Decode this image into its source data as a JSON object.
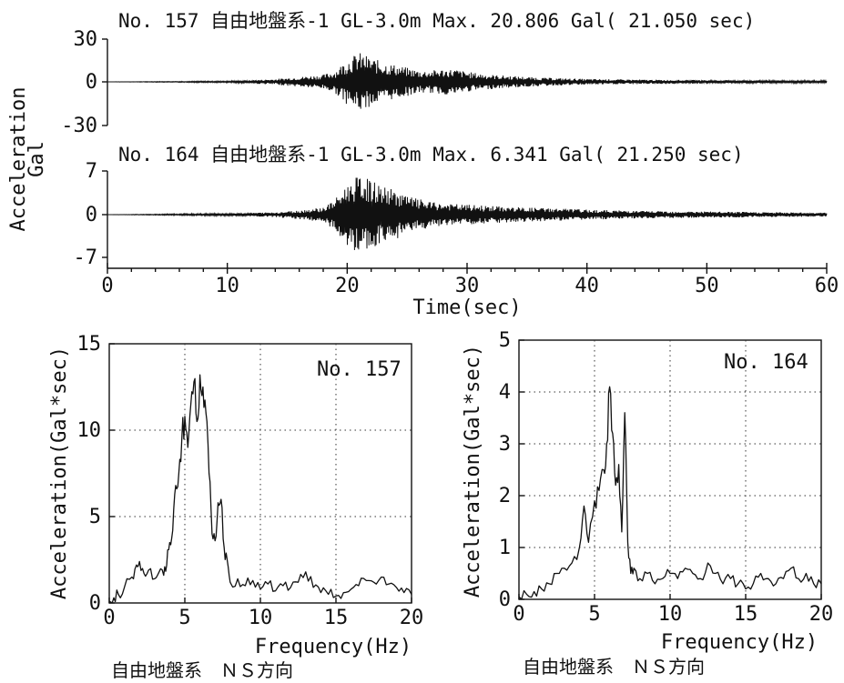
{
  "chart_data": [
    {
      "type": "line",
      "title": "No. 157  自由地盤系-1   GL-3.0m    Max.  20.806 Gal( 21.050 sec)",
      "ylabel": "Acceleration\nGal",
      "xlabel": "Time(sec)",
      "ylim": [
        -30,
        30
      ],
      "xlim": [
        0,
        60
      ],
      "y_ticks": [
        "30",
        "0",
        "-30"
      ],
      "x_ticks": [
        "0",
        "10",
        "20",
        "30",
        "40",
        "50",
        "60"
      ],
      "max_value": 20.806,
      "max_time": 21.05,
      "series": [
        {
          "values": [
            [
              0,
              0
            ],
            [
              5,
              0.3
            ],
            [
              10,
              0.6
            ],
            [
              12,
              1.2
            ],
            [
              14,
              2
            ],
            [
              16,
              3.5
            ],
            [
              18,
              5
            ],
            [
              19,
              8
            ],
            [
              20,
              16
            ],
            [
              21,
              20.8
            ],
            [
              22,
              17
            ],
            [
              23,
              14
            ],
            [
              24,
              12
            ],
            [
              25,
              10
            ],
            [
              26,
              8
            ],
            [
              27,
              8
            ],
            [
              28,
              9
            ],
            [
              29,
              9
            ],
            [
              30,
              7
            ],
            [
              32,
              5
            ],
            [
              34,
              4
            ],
            [
              36,
              3
            ],
            [
              38,
              2.5
            ],
            [
              40,
              2
            ],
            [
              45,
              1.5
            ],
            [
              50,
              1.2
            ],
            [
              55,
              1
            ],
            [
              60,
              0.8
            ]
          ]
        }
      ]
    },
    {
      "type": "line",
      "title": "No. 164  自由地盤系-1   GL-3.0m    Max.  6.341 Gal( 21.250 sec)",
      "ylabel": "Acceleration\nGal",
      "xlabel": "Time(sec)",
      "ylim": [
        -7,
        7
      ],
      "xlim": [
        0,
        60
      ],
      "y_ticks": [
        "7",
        "0",
        "-7"
      ],
      "x_ticks": [
        "0",
        "10",
        "20",
        "30",
        "40",
        "50",
        "60"
      ],
      "max_value": 6.341,
      "max_time": 21.25,
      "series": [
        {
          "values": [
            [
              0,
              0
            ],
            [
              5,
              0.1
            ],
            [
              10,
              0.2
            ],
            [
              14,
              0.4
            ],
            [
              16,
              0.7
            ],
            [
              18,
              1.2
            ],
            [
              19,
              2.5
            ],
            [
              20,
              5
            ],
            [
              21,
              6.3
            ],
            [
              22,
              5.5
            ],
            [
              23,
              4.5
            ],
            [
              24,
              4
            ],
            [
              25,
              3
            ],
            [
              26,
              2.5
            ],
            [
              27,
              2
            ],
            [
              28,
              1.8
            ],
            [
              30,
              1.6
            ],
            [
              32,
              1.4
            ],
            [
              34,
              1.2
            ],
            [
              36,
              1.1
            ],
            [
              38,
              1
            ],
            [
              40,
              0.8
            ],
            [
              45,
              0.6
            ],
            [
              50,
              0.5
            ],
            [
              55,
              0.4
            ],
            [
              60,
              0.3
            ]
          ]
        }
      ]
    },
    {
      "type": "line",
      "title": "",
      "label": "No. 157",
      "xlabel": "Frequency(Hz)",
      "ylabel": "Acceleration(Gal*sec)",
      "xlim": [
        0,
        20
      ],
      "ylim": [
        0,
        15
      ],
      "x_ticks": [
        "0",
        "5",
        "10",
        "15",
        "20"
      ],
      "y_ticks": [
        "0",
        "5",
        "10",
        "15"
      ],
      "grid": true,
      "caption": "自由地盤系　ＮＳ方向",
      "series": [
        {
          "x": [
            0,
            0.3,
            0.6,
            1.0,
            1.5,
            1.8,
            2.0,
            2.3,
            2.6,
            3.0,
            3.3,
            3.6,
            3.8,
            4.0,
            4.2,
            4.4,
            4.6,
            4.8,
            5.0,
            5.2,
            5.4,
            5.6,
            5.8,
            6.0,
            6.2,
            6.4,
            6.6,
            6.8,
            7.0,
            7.2,
            7.4,
            7.6,
            7.8,
            8.0,
            8.5,
            9.0,
            9.5,
            10,
            10.5,
            11,
            11.5,
            12,
            12.5,
            13,
            13.5,
            14,
            14.5,
            15,
            15.5,
            16,
            16.5,
            17,
            17.5,
            18,
            18.5,
            19,
            19.5,
            20
          ],
          "y": [
            0.1,
            0.3,
            0.5,
            0.9,
            1.5,
            2.2,
            2.4,
            1.7,
            1.9,
            1.4,
            1.8,
            1.6,
            2.2,
            3.5,
            4.2,
            6.8,
            7.5,
            9.5,
            10.8,
            9.0,
            11.5,
            12.8,
            10.5,
            13.2,
            12.5,
            11.0,
            7.5,
            4.0,
            3.6,
            5.8,
            6.0,
            3.2,
            2.5,
            1.2,
            1.4,
            1.0,
            1.3,
            0.8,
            1.1,
            0.7,
            1.0,
            0.9,
            1.2,
            1.8,
            0.9,
            0.6,
            0.5,
            0.4,
            0.6,
            0.8,
            1.0,
            1.3,
            1.2,
            1.5,
            1.1,
            0.9,
            0.6,
            0.5
          ]
        }
      ]
    },
    {
      "type": "line",
      "title": "",
      "label": "No. 164",
      "xlabel": "Frequency(Hz)",
      "ylabel": "Acceleration(Gal*sec)",
      "xlim": [
        0,
        20
      ],
      "ylim": [
        0,
        5
      ],
      "x_ticks": [
        "0",
        "5",
        "10",
        "15",
        "20"
      ],
      "y_ticks": [
        "0",
        "1",
        "2",
        "3",
        "4",
        "5"
      ],
      "grid": true,
      "caption": "自由地盤系　ＮＳ方向",
      "series": [
        {
          "x": [
            0,
            0.5,
            1.0,
            1.5,
            2.0,
            2.5,
            3.0,
            3.5,
            4.0,
            4.3,
            4.6,
            5.0,
            5.3,
            5.6,
            5.8,
            6.0,
            6.2,
            6.4,
            6.6,
            6.8,
            7.0,
            7.2,
            7.4,
            7.6,
            8.0,
            8.5,
            9.0,
            9.5,
            10,
            10.5,
            11,
            11.5,
            12,
            12.5,
            13,
            13.5,
            14,
            14.5,
            15,
            15.5,
            16,
            16.5,
            17,
            17.5,
            18,
            18.5,
            19,
            19.5,
            20
          ],
          "y": [
            0.05,
            0.1,
            0.15,
            0.2,
            0.3,
            0.5,
            0.6,
            0.7,
            1.0,
            1.8,
            1.1,
            1.9,
            2.1,
            2.5,
            3.0,
            4.1,
            3.2,
            2.2,
            2.6,
            1.3,
            3.6,
            1.1,
            0.5,
            0.6,
            0.4,
            0.5,
            0.3,
            0.4,
            0.5,
            0.4,
            0.6,
            0.5,
            0.4,
            0.7,
            0.5,
            0.3,
            0.4,
            0.3,
            0.2,
            0.3,
            0.5,
            0.4,
            0.3,
            0.4,
            0.6,
            0.4,
            0.5,
            0.3,
            0.3
          ]
        }
      ]
    }
  ]
}
